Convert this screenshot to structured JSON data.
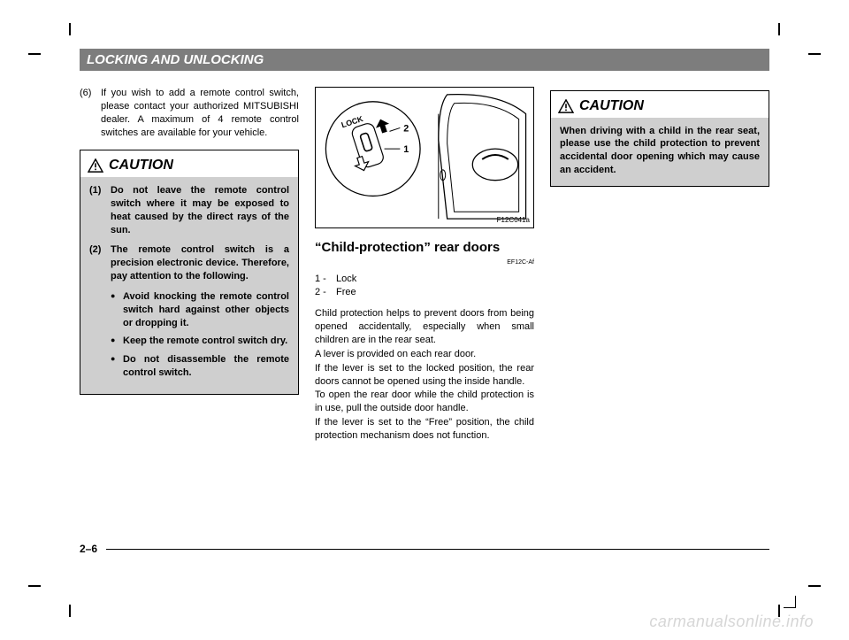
{
  "header": "LOCKING AND UNLOCKING",
  "col1": {
    "para": {
      "num": "(6)",
      "text": "If you wish to add a remote control switch, please contact your authorized MITSUBISHI dealer. A maximum of 4 remote control switches are available for your vehicle."
    },
    "caution_label": "CAUTION",
    "caution": {
      "item1_num": "(1)",
      "item1_text": "Do not leave the remote control switch where it may be exposed to heat caused by  the direct rays of the sun.",
      "item2_num": "(2)",
      "item2_text": "The remote control switch is a precision electronic device. Therefore, pay attention to the following.",
      "bullet1": "Avoid knocking the remote control switch hard against other objects or dropping it.",
      "bullet2": "Keep the remote control switch dry.",
      "bullet3": "Do not disassemble the remote control switch."
    }
  },
  "col2": {
    "figure_code": "F12C041a",
    "figure": {
      "lock_label": "LOCK",
      "num1": "1",
      "num2": "2"
    },
    "title": "“Child-protection” rear doors",
    "title_code": "EF12C-Af",
    "legend1_n": "1 -",
    "legend1_t": "Lock",
    "legend2_n": "2 -",
    "legend2_t": "Free",
    "body": "Child protection helps to prevent doors from being opened accidentally, especially when small children are in the rear seat.\nA lever is provided on each rear door.\nIf the lever is set to the locked position, the rear doors cannot be opened using the inside handle.\nTo open the rear door while the child protection is in use, pull the outside door handle.\nIf the lever is set to the “Free” position, the child protection mechanism does not function."
  },
  "col3": {
    "caution_label": "CAUTION",
    "caution_text": "When driving with a child in the rear seat, please use the child protection to prevent accidental door opening which may cause an accident."
  },
  "page_number": "2–6",
  "watermark": "carmanualsonline.info"
}
